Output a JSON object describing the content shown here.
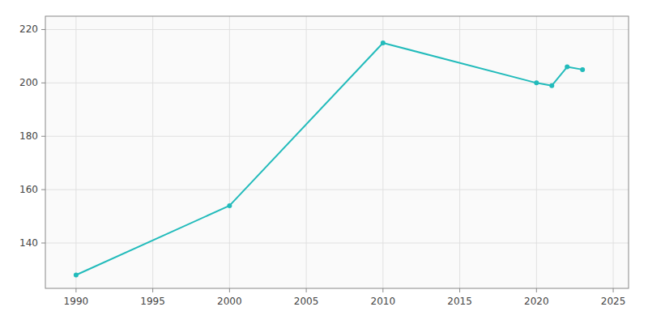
{
  "chart_data": {
    "type": "line",
    "x": [
      1990,
      2000,
      2010,
      2020,
      2021,
      2022,
      2023
    ],
    "values": [
      128,
      154,
      215,
      200,
      199,
      206,
      205
    ],
    "color": "#22BBBB",
    "marker": "circle",
    "xlim": [
      1988,
      2026
    ],
    "ylim": [
      123,
      225
    ],
    "xticks": [
      1990,
      1995,
      2000,
      2005,
      2010,
      2015,
      2020,
      2025
    ],
    "yticks": [
      140,
      160,
      180,
      200,
      220
    ],
    "grid": true
  }
}
